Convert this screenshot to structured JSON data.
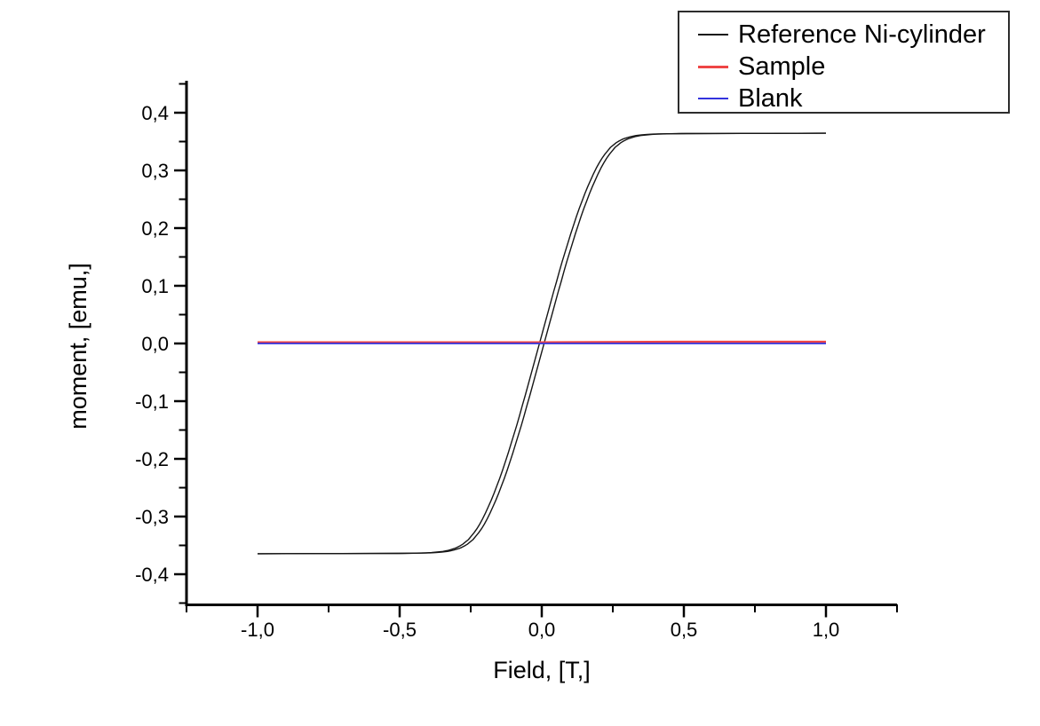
{
  "chart_data": {
    "type": "line",
    "title": "",
    "xlabel": "Field, [T,]",
    "ylabel": "moment, [emu,]",
    "xlim": [
      -1.25,
      1.25
    ],
    "ylim": [
      -0.45,
      0.45
    ],
    "grid": false,
    "legend_position": "top-right",
    "decimal_separator": ",",
    "x_major_ticks": [
      {
        "value": -1.0,
        "label": "-1,0"
      },
      {
        "value": -0.5,
        "label": "-0,5"
      },
      {
        "value": 0.0,
        "label": "0,0"
      },
      {
        "value": 0.5,
        "label": "0,5"
      },
      {
        "value": 1.0,
        "label": "1,0"
      }
    ],
    "x_minor_step": 0.25,
    "y_major_ticks": [
      {
        "value": 0.4,
        "label": "0,4"
      },
      {
        "value": 0.3,
        "label": "0,3"
      },
      {
        "value": 0.2,
        "label": "0,2"
      },
      {
        "value": 0.1,
        "label": "0,1"
      },
      {
        "value": 0.0,
        "label": "0,0"
      },
      {
        "value": -0.1,
        "label": "-0,1"
      },
      {
        "value": -0.2,
        "label": "-0,2"
      },
      {
        "value": -0.3,
        "label": "-0,3"
      },
      {
        "value": -0.4,
        "label": "-0,4"
      }
    ],
    "y_minor_step": 0.05,
    "series": [
      {
        "name": "Reference Ni-cylinder",
        "color": "#161616",
        "line_width": 1.4,
        "shape": "hysteresis-loop",
        "field_range_T": [
          -1.0,
          1.0
        ],
        "saturation_moment_emu": 0.364,
        "coercive_field_T": 0.008,
        "magnetization_curve_half": [
          [
            0.0,
            0.0
          ],
          [
            0.01,
            0.018
          ],
          [
            0.02,
            0.036
          ],
          [
            0.03,
            0.054
          ],
          [
            0.04,
            0.072
          ],
          [
            0.05,
            0.09
          ],
          [
            0.06,
            0.107
          ],
          [
            0.07,
            0.125
          ],
          [
            0.08,
            0.142
          ],
          [
            0.09,
            0.158
          ],
          [
            0.1,
            0.174
          ],
          [
            0.11,
            0.19
          ],
          [
            0.12,
            0.205
          ],
          [
            0.13,
            0.22
          ],
          [
            0.14,
            0.234
          ],
          [
            0.15,
            0.247
          ],
          [
            0.16,
            0.26
          ],
          [
            0.17,
            0.272
          ],
          [
            0.18,
            0.283
          ],
          [
            0.19,
            0.294
          ],
          [
            0.2,
            0.304
          ],
          [
            0.21,
            0.313
          ],
          [
            0.22,
            0.321
          ],
          [
            0.23,
            0.328
          ],
          [
            0.24,
            0.334
          ],
          [
            0.25,
            0.34
          ],
          [
            0.26,
            0.344
          ],
          [
            0.27,
            0.348
          ],
          [
            0.28,
            0.351
          ],
          [
            0.29,
            0.3535
          ],
          [
            0.3,
            0.3555
          ],
          [
            0.32,
            0.3585
          ],
          [
            0.34,
            0.3605
          ],
          [
            0.36,
            0.3615
          ],
          [
            0.38,
            0.3625
          ],
          [
            0.4,
            0.363
          ],
          [
            0.45,
            0.3635
          ],
          [
            0.5,
            0.3638
          ],
          [
            0.6,
            0.364
          ],
          [
            0.7,
            0.3641
          ],
          [
            0.8,
            0.3642
          ],
          [
            0.9,
            0.3643
          ],
          [
            1.0,
            0.3644
          ],
          [
            1.01,
            0.3644
          ]
        ]
      },
      {
        "name": "Sample",
        "color": "#ee4545",
        "line_width": 2.5,
        "shape": "flat",
        "points": [
          [
            -1.0,
            0.002
          ],
          [
            -0.5,
            0.002
          ],
          [
            0.0,
            0.002
          ],
          [
            0.5,
            0.003
          ],
          [
            1.0,
            0.003
          ]
        ]
      },
      {
        "name": "Blank",
        "color": "#3333dd",
        "line_width": 1.8,
        "shape": "flat",
        "points": [
          [
            -1.0,
            0.0
          ],
          [
            -0.5,
            0.0
          ],
          [
            0.0,
            0.0
          ],
          [
            0.5,
            0.0
          ],
          [
            1.0,
            0.0
          ]
        ]
      }
    ]
  }
}
